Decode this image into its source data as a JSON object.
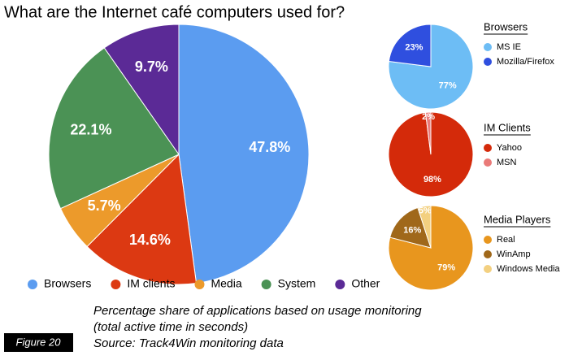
{
  "chart_data": [
    {
      "type": "pie",
      "title": "What are the Internet café computers used for?",
      "categories": [
        "Browsers",
        "IM clients",
        "Media",
        "System",
        "Other"
      ],
      "values": [
        47.8,
        14.6,
        5.7,
        22.1,
        9.7
      ],
      "value_labels": [
        "47.8%",
        "14.6%",
        "5.7%",
        "22.1%",
        "9.7%"
      ],
      "colors": [
        "#5b9cf0",
        "#dc3912",
        "#ec9a2b",
        "#4b9255",
        "#5b2a96"
      ],
      "legend": "bottom"
    },
    {
      "type": "pie",
      "title": "Browsers",
      "categories": [
        "MS IE",
        "Mozilla/Firefox"
      ],
      "values": [
        77,
        23
      ],
      "value_labels": [
        "77%",
        "23%"
      ],
      "colors": [
        "#6dbdf5",
        "#2f4fdf"
      ],
      "legend": "right"
    },
    {
      "type": "pie",
      "title": "IM Clients",
      "categories": [
        "Yahoo",
        "MSN"
      ],
      "values": [
        98,
        2
      ],
      "value_labels": [
        "98%",
        "2%"
      ],
      "colors": [
        "#d42a0a",
        "#ea7a78"
      ],
      "legend": "right"
    },
    {
      "type": "pie",
      "title": "Media Players",
      "categories": [
        "Real",
        "WinAmp",
        "Windows Media"
      ],
      "values": [
        79,
        16,
        5
      ],
      "value_labels": [
        "79%",
        "16%",
        "5%"
      ],
      "colors": [
        "#e8961e",
        "#a0681a",
        "#f3d080"
      ],
      "legend": "right"
    }
  ],
  "caption": [
    "Percentage share of  applications based on usage monitoring",
    "(total active time in seconds)",
    "Source: Track4Win monitoring data"
  ],
  "figure_label": "Figure 20"
}
